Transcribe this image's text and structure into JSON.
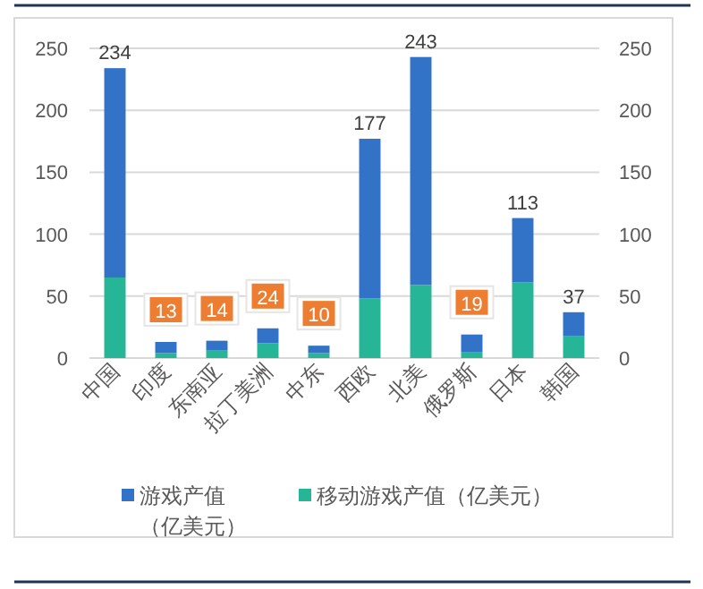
{
  "chart_data": {
    "type": "bar",
    "stacked": true,
    "categories": [
      "中国",
      "印度",
      "东南亚",
      "拉丁美洲",
      "中东",
      "西欧",
      "北美",
      "俄罗斯",
      "日本",
      "韩国"
    ],
    "series": [
      {
        "name": "移动游戏产值（亿美元）",
        "color": "#27b597",
        "values": [
          65,
          4,
          6,
          12,
          4,
          48,
          59,
          5,
          61,
          18
        ]
      },
      {
        "name": "游戏产值（亿美元）",
        "color": "#3273c8",
        "values": [
          169,
          9,
          8,
          12,
          6,
          129,
          184,
          14,
          52,
          19
        ]
      }
    ],
    "totals": [
      "234",
      "13",
      "14",
      "24",
      "10",
      "177",
      "243",
      "19",
      "113",
      "37"
    ],
    "ylim": [
      0,
      250
    ],
    "yticks": [
      0,
      50,
      100,
      150,
      200,
      250
    ],
    "y2lim": [
      0,
      250
    ],
    "y2ticks": [
      0,
      50,
      100,
      150,
      200,
      250
    ],
    "grid": "y",
    "legend": "bottom"
  }
}
